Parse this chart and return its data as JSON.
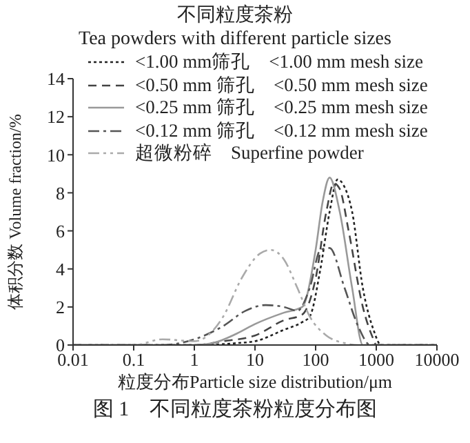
{
  "chart_data": {
    "type": "line",
    "legend_title": "不同粒度茶粉\nTea powders with different particle sizes",
    "xlabel": "粒度分布Particle size distribution/μm",
    "ylabel": "体积分数 Volume fraction/%",
    "annotations": [
      "图 1    不同粒度茶粉粒度分布图"
    ],
    "log": "x",
    "xlim": [
      0.01,
      10000
    ],
    "xticks": [
      0.01,
      0.1,
      1,
      10,
      100,
      1000,
      10000
    ],
    "ylim": [
      0,
      14
    ],
    "yticks": [
      0,
      2,
      4,
      6,
      8,
      10,
      12,
      14
    ],
    "grid": false,
    "legend": "top left",
    "marker": "none",
    "series": [
      {
        "name": "<1.00 mm筛孔    <1.00 mm mesh size",
        "color": "#222222",
        "line_style": "dotted",
        "x": [
          0.01,
          1,
          5,
          10,
          30,
          60,
          80,
          120,
          170,
          230,
          300,
          400,
          600,
          900,
          1200,
          10000
        ],
        "values": [
          0,
          0,
          0.1,
          0.2,
          0.8,
          1.2,
          1.5,
          4,
          7,
          8.7,
          8.3,
          7,
          3,
          0.8,
          0,
          0
        ]
      },
      {
        "name": "<0.50 mm 筛孔    <0.50 mm mesh size",
        "color": "#444444",
        "line_style": "dashed",
        "x": [
          0.01,
          1,
          3,
          10,
          30,
          60,
          100,
          150,
          200,
          250,
          350,
          600,
          900,
          1000,
          10000
        ],
        "values": [
          0,
          0,
          0.2,
          0.5,
          1.3,
          1.6,
          3.5,
          7,
          8.5,
          8.2,
          6,
          2,
          0.3,
          0,
          0
        ]
      },
      {
        "name": "<0.25 mm 筛孔    <0.25 mm mesh size",
        "color": "#999999",
        "line_style": "solid",
        "x": [
          0.01,
          1,
          2,
          5,
          10,
          30,
          60,
          100,
          130,
          170,
          250,
          400,
          600,
          10000
        ],
        "values": [
          0,
          0,
          0.1,
          0.6,
          1.1,
          1.7,
          2,
          5,
          7.5,
          8.8,
          7,
          3,
          0,
          0
        ]
      },
      {
        "name": "<0.12 mm 筛孔    <0.12 mm mesh size",
        "color": "#555555",
        "line_style": "dashdot",
        "x": [
          0.01,
          0.3,
          1,
          3,
          7,
          15,
          30,
          50,
          80,
          120,
          170,
          300,
          500,
          800,
          10000
        ],
        "values": [
          0,
          0,
          0.3,
          1,
          1.8,
          2.1,
          2,
          1.8,
          3,
          5,
          5.1,
          3,
          1,
          0,
          0
        ]
      },
      {
        "name": "超微粉碎    Superfine powder",
        "color": "#aaaaaa",
        "line_style": "dashdotdot",
        "x": [
          0.01,
          0.1,
          0.3,
          1,
          3,
          6,
          12,
          18,
          30,
          50,
          80,
          150,
          300,
          500,
          10000
        ],
        "values": [
          0,
          0,
          0.3,
          0.2,
          1.5,
          3.5,
          4.8,
          5,
          4.5,
          3,
          1.5,
          0.5,
          0.1,
          0,
          0
        ]
      }
    ]
  }
}
